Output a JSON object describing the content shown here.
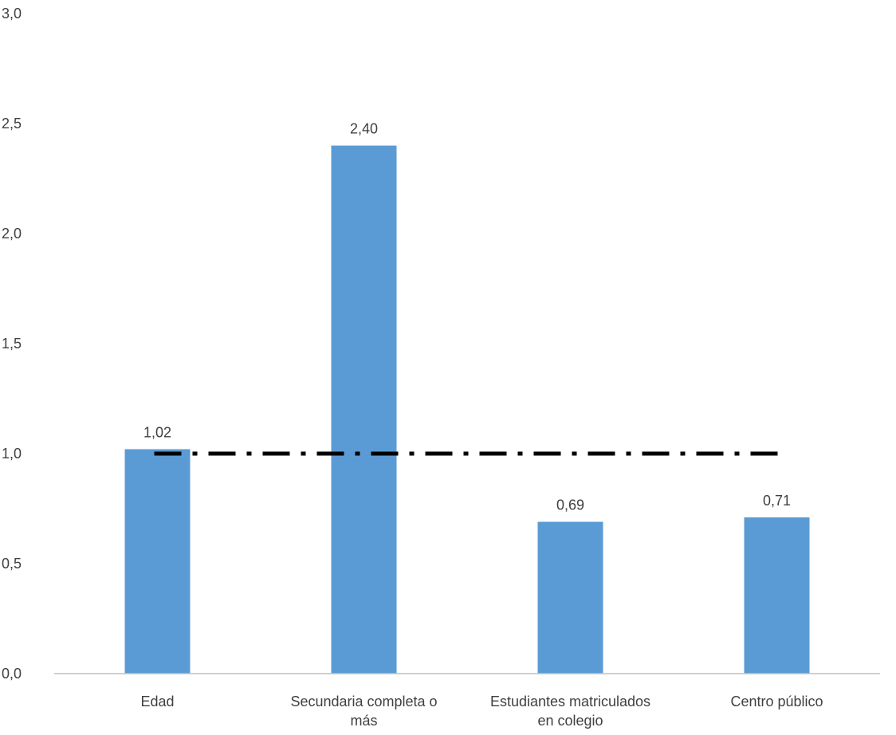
{
  "chart_data": {
    "type": "bar",
    "categories": [
      [
        "Edad"
      ],
      [
        "Secundaria completa o",
        "más"
      ],
      [
        "Estudiantes matriculados",
        "en colegio"
      ],
      [
        "Centro público"
      ]
    ],
    "values": [
      1.02,
      2.4,
      0.69,
      0.71
    ],
    "value_labels": [
      "1,02",
      "2,40",
      "0,69",
      "0,71"
    ],
    "ylim": [
      0,
      3
    ],
    "yticks": [
      0,
      0.5,
      1,
      1.5,
      2,
      2.5,
      3
    ],
    "ytick_labels": [
      "0,0",
      "0,5",
      "1,0",
      "1,5",
      "2,0",
      "2,5",
      "3,0"
    ],
    "reference_line": {
      "y": 1.0,
      "style": "dash-dot"
    },
    "grid": false,
    "legend": "none",
    "colors": {
      "bar": "#5b9bd5",
      "reference_line": "#000000",
      "axis": "#bfbfbf",
      "text": "#404040"
    }
  }
}
